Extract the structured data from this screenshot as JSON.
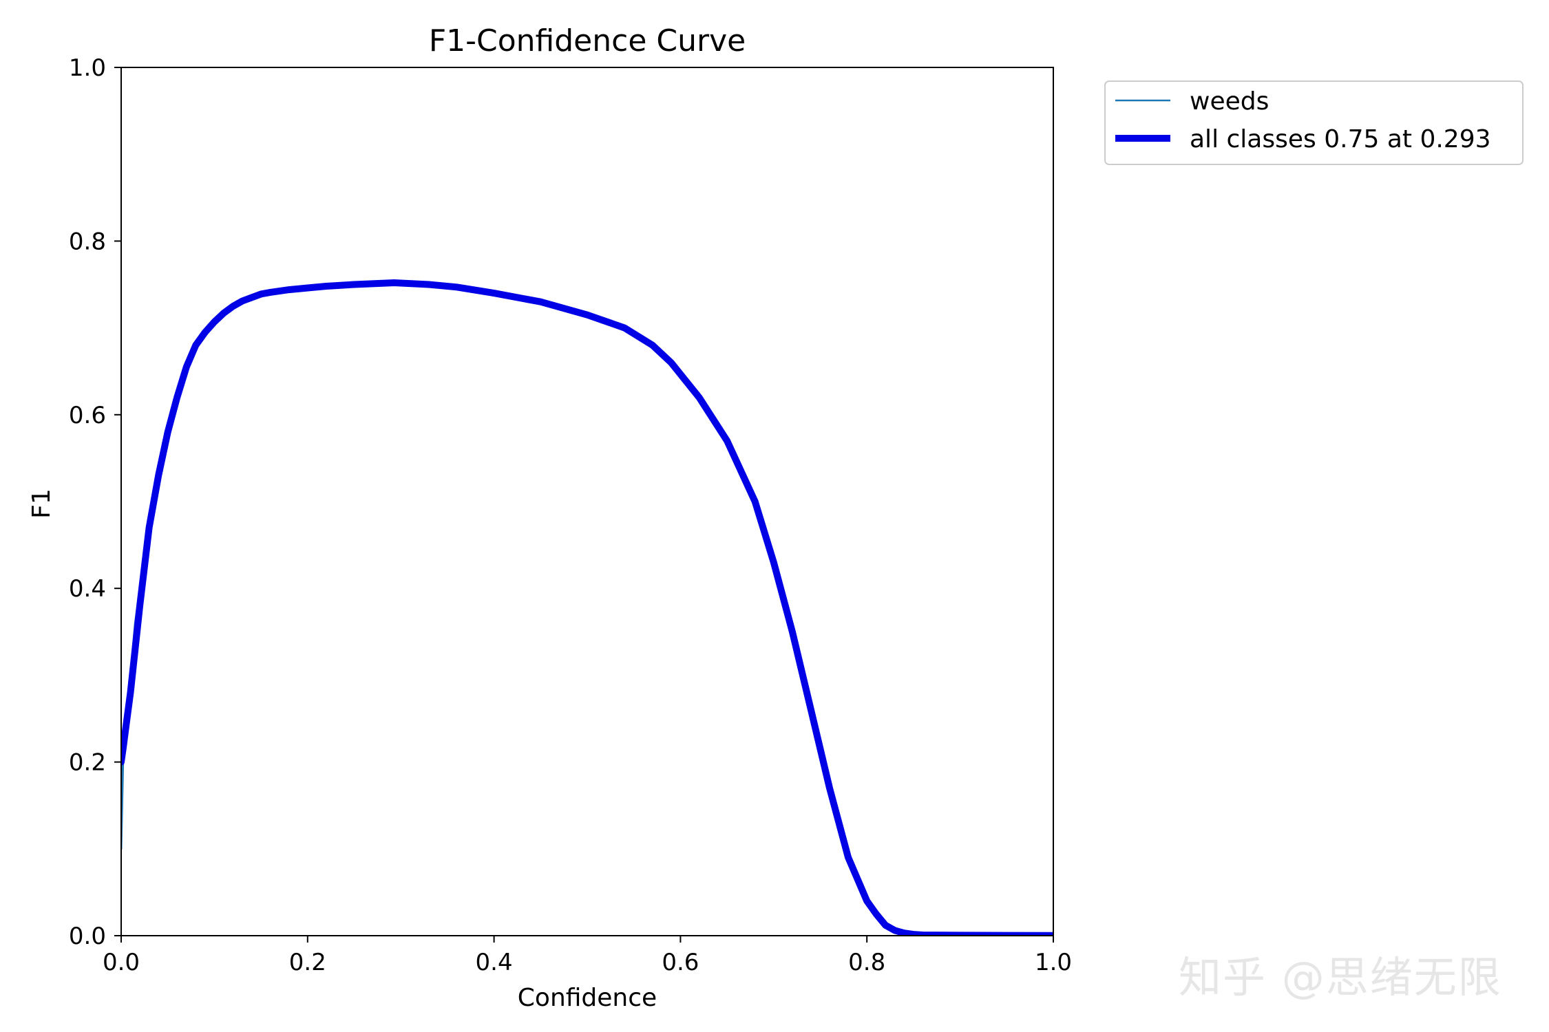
{
  "chart_data": {
    "type": "line",
    "title": "F1-Confidence Curve",
    "xlabel": "Confidence",
    "ylabel": "F1",
    "xlim": [
      0.0,
      1.0
    ],
    "ylim": [
      0.0,
      1.0
    ],
    "xticks": [
      "0.0",
      "0.2",
      "0.4",
      "0.6",
      "0.8",
      "1.0"
    ],
    "yticks": [
      "0.0",
      "0.2",
      "0.4",
      "0.6",
      "0.8",
      "1.0"
    ],
    "grid": false,
    "legend_position": "outside top-right",
    "series": [
      {
        "name": "weeds",
        "color": "#1f77b4",
        "x": [
          0.0,
          0.002,
          0.005,
          0.01,
          0.015,
          0.02,
          0.03,
          0.04,
          0.05,
          0.06,
          0.07,
          0.08,
          0.09,
          0.1,
          0.11,
          0.12,
          0.13,
          0.14,
          0.15,
          0.16,
          0.18,
          0.2,
          0.22,
          0.25,
          0.293,
          0.33,
          0.36,
          0.4,
          0.45,
          0.5,
          0.54,
          0.57,
          0.59,
          0.62,
          0.65,
          0.68,
          0.7,
          0.72,
          0.74,
          0.76,
          0.78,
          0.8,
          0.81,
          0.82,
          0.83,
          0.84,
          0.85,
          0.86,
          0.9,
          0.95,
          1.0
        ],
        "y": [
          0.1,
          0.2,
          0.25,
          0.3,
          0.36,
          0.4,
          0.47,
          0.53,
          0.58,
          0.62,
          0.655,
          0.68,
          0.695,
          0.707,
          0.717,
          0.725,
          0.731,
          0.735,
          0.739,
          0.741,
          0.744,
          0.746,
          0.748,
          0.75,
          0.752,
          0.75,
          0.747,
          0.74,
          0.73,
          0.715,
          0.7,
          0.68,
          0.66,
          0.62,
          0.57,
          0.5,
          0.43,
          0.35,
          0.26,
          0.17,
          0.09,
          0.04,
          0.025,
          0.012,
          0.006,
          0.003,
          0.0015,
          0.0008,
          0.0005,
          0.0003,
          0.0002
        ]
      },
      {
        "name": "all classes 0.75 at 0.293",
        "color": "#0000e6",
        "x": [
          0.0,
          0.002,
          0.005,
          0.01,
          0.015,
          0.02,
          0.03,
          0.04,
          0.05,
          0.06,
          0.07,
          0.08,
          0.09,
          0.1,
          0.11,
          0.12,
          0.13,
          0.14,
          0.15,
          0.16,
          0.18,
          0.2,
          0.22,
          0.25,
          0.293,
          0.33,
          0.36,
          0.4,
          0.45,
          0.5,
          0.54,
          0.57,
          0.59,
          0.62,
          0.65,
          0.68,
          0.7,
          0.72,
          0.74,
          0.76,
          0.78,
          0.8,
          0.81,
          0.82,
          0.83,
          0.84,
          0.85,
          0.86,
          0.9,
          0.95,
          1.0
        ],
        "y": [
          0.2,
          0.215,
          0.24,
          0.28,
          0.33,
          0.38,
          0.47,
          0.53,
          0.58,
          0.62,
          0.655,
          0.68,
          0.695,
          0.707,
          0.717,
          0.725,
          0.731,
          0.735,
          0.739,
          0.741,
          0.744,
          0.746,
          0.748,
          0.75,
          0.752,
          0.75,
          0.747,
          0.74,
          0.73,
          0.715,
          0.7,
          0.68,
          0.66,
          0.62,
          0.57,
          0.5,
          0.43,
          0.35,
          0.26,
          0.17,
          0.09,
          0.04,
          0.025,
          0.012,
          0.006,
          0.003,
          0.0015,
          0.0008,
          0.0005,
          0.0003,
          0.0002
        ]
      }
    ]
  },
  "watermark": "知乎 @思绪无限"
}
